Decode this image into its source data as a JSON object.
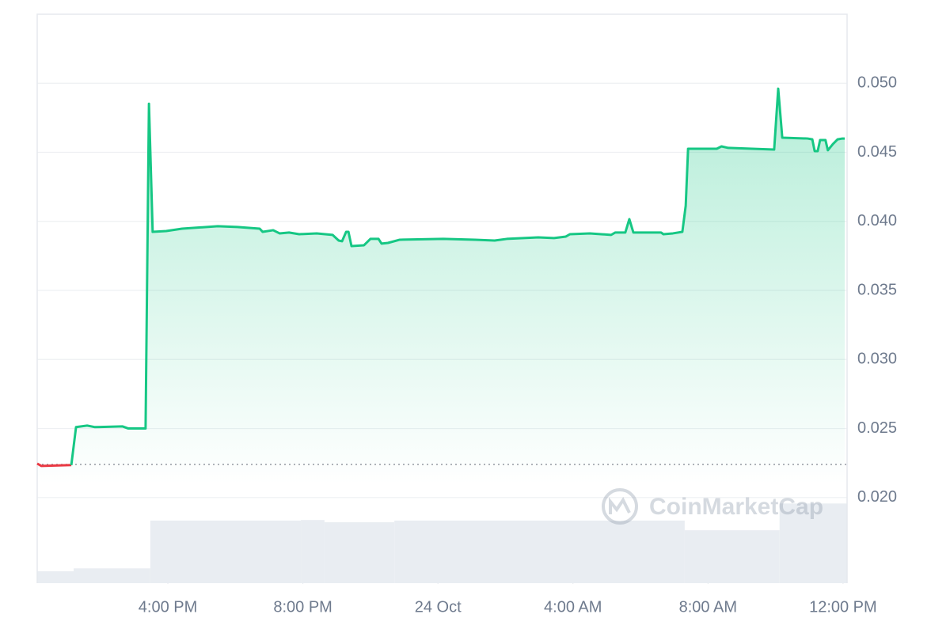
{
  "chart_data": {
    "type": "line",
    "x": [
      12.13,
      12.25,
      13.14,
      13.28,
      13.61,
      13.84,
      14.66,
      14.83,
      15.34,
      15.44,
      15.55,
      15.95,
      16.42,
      17.48,
      18.06,
      18.72,
      18.81,
      19.12,
      19.31,
      19.59,
      19.89,
      20.41,
      20.88,
      21.06,
      21.16,
      21.28,
      21.35,
      21.44,
      21.81,
      22.0,
      22.24,
      22.33,
      22.52,
      22.87,
      24.16,
      25.1,
      25.68,
      26.04,
      26.97,
      27.44,
      27.79,
      27.91,
      28.5,
      29.13,
      29.25,
      29.55,
      29.67,
      29.79,
      30.61,
      30.68,
      30.96,
      31.24,
      31.34,
      31.41,
      32.26,
      32.4,
      32.6,
      33.31,
      33.96,
      34.08,
      34.2,
      34.95,
      35.09,
      35.16,
      35.25,
      35.32,
      35.48,
      35.55,
      35.7,
      35.84,
      35.98,
      36.05
    ],
    "values": [
      0.02246,
      0.02229,
      0.02235,
      0.0251,
      0.02521,
      0.0251,
      0.02515,
      0.025,
      0.025,
      0.04852,
      0.03924,
      0.0393,
      0.03947,
      0.03965,
      0.03959,
      0.03947,
      0.03924,
      0.03936,
      0.03913,
      0.03919,
      0.03907,
      0.03913,
      0.03902,
      0.03861,
      0.03856,
      0.03924,
      0.03924,
      0.03821,
      0.03827,
      0.03873,
      0.03873,
      0.03839,
      0.03844,
      0.03867,
      0.03873,
      0.03867,
      0.03861,
      0.03873,
      0.03884,
      0.03879,
      0.0389,
      0.03907,
      0.03913,
      0.03902,
      0.03919,
      0.03919,
      0.04016,
      0.03919,
      0.03919,
      0.03907,
      0.03913,
      0.03924,
      0.04113,
      0.04526,
      0.04526,
      0.04543,
      0.04532,
      0.04526,
      0.0452,
      0.04961,
      0.04606,
      0.046,
      0.04594,
      0.04509,
      0.04509,
      0.04589,
      0.04589,
      0.04515,
      0.0456,
      0.04594,
      0.046,
      0.046
    ],
    "color": "#16c784",
    "down_color": "#ea3943",
    "baseline": 0.0224,
    "xlim": [
      12.13,
      36.12
    ],
    "xticks": [
      {
        "value": 16,
        "label": "4:00 PM"
      },
      {
        "value": 20,
        "label": "8:00 PM"
      },
      {
        "value": 24,
        "label": "24 Oct"
      },
      {
        "value": 28,
        "label": "4:00 AM"
      },
      {
        "value": 32,
        "label": "8:00 AM"
      },
      {
        "value": 36,
        "label": "12:00 PM"
      }
    ],
    "ylim": [
      0.0138,
      0.055
    ],
    "yticks": [
      {
        "value": 0.02,
        "label": "0.020"
      },
      0.025,
      {
        "value": 0.03,
        "label": "0.030"
      },
      0.035,
      {
        "value": 0.04,
        "label": "0.040"
      },
      0.045,
      {
        "value": 0.05,
        "label": "0.050"
      }
    ],
    "grid": true,
    "volume": {
      "bins": [
        12.13,
        13.21,
        15.48,
        19.94,
        20.64,
        22.71,
        31.31,
        34.12,
        36.12
      ],
      "values": [
        2.1,
        2.6,
        11.0,
        11.1,
        10.7,
        11.0,
        9.3,
        14.0
      ],
      "ylim": [
        0,
        100
      ],
      "color": "#e9edf2"
    },
    "watermark": "CoinMarketCap"
  }
}
